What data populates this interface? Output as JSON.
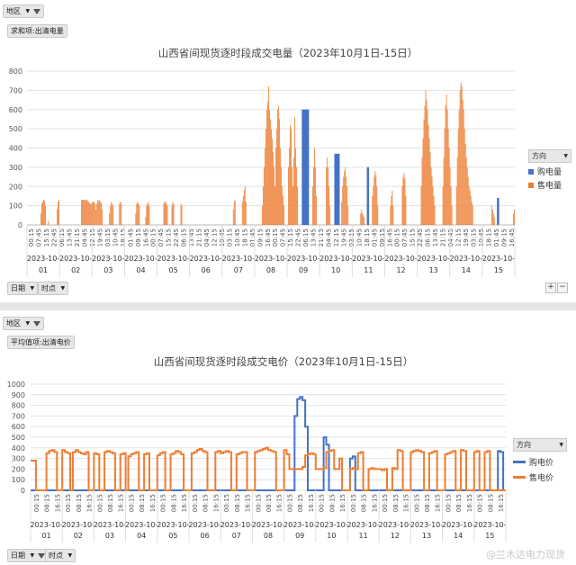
{
  "panel1": {
    "filter_label": "地区",
    "field_label": "求和项:出清电量",
    "row_fields": [
      "日期",
      "时点"
    ],
    "legend_title": "方向",
    "chart_data": {
      "type": "bar",
      "title": "山西省间现货逐时段成交电量（2023年10月1日-15日）",
      "xlabel": "",
      "ylabel": "",
      "ylim": [
        0,
        800
      ],
      "yticks": [
        0,
        100,
        200,
        300,
        400,
        500,
        600,
        700,
        800
      ],
      "grid": true,
      "legend_position": "right",
      "x_time_labels": [
        "00:15",
        "07:45",
        "15:15",
        "22:45",
        "06:15",
        "13:45",
        "21:15",
        "04:45",
        "12:15",
        "19:45",
        "03:15",
        "10:45",
        "18:15",
        "01:45",
        "09:15",
        "16:45",
        "00:15",
        "07:45",
        "15:15",
        "22:45",
        "06:15",
        "13:45",
        "21:15",
        "04:45",
        "12:15",
        "19:45",
        "03:15",
        "10:45",
        "18:15",
        "01:45",
        "09:15",
        "16:45",
        "00:15",
        "07:45",
        "15:15",
        "22:45",
        "06:15",
        "13:45",
        "21:15",
        "04:45",
        "12:15",
        "19:45",
        "03:15",
        "10:45",
        "18:15",
        "01:45",
        "09:15",
        "16:45",
        "00:15",
        "07:45",
        "15:15",
        "22:45",
        "06:15",
        "13:45",
        "21:15",
        "04:45",
        "12:15",
        "19:45",
        "03:15",
        "10:45",
        "18:15",
        "01:45",
        "09:15",
        "16:45"
      ],
      "date_group_label": "2023-10-",
      "categories": [
        "01",
        "02",
        "03",
        "04",
        "05",
        "06",
        "07",
        "08",
        "09",
        "10",
        "11",
        "12",
        "13",
        "14",
        "15"
      ],
      "series": [
        {
          "name": "购电量",
          "color": "#4472C4",
          "values": [
            0,
            0,
            0,
            0,
            0,
            0,
            0,
            0,
            600,
            370,
            300,
            0,
            0,
            0,
            140
          ]
        },
        {
          "name": "售电量",
          "color": "#ED7D31",
          "values": [
            130,
            130,
            130,
            120,
            120,
            120,
            200,
            730,
            560,
            300,
            280,
            270,
            720,
            740,
            100
          ]
        }
      ],
      "daily_profile": {
        "01": [
          0,
          0,
          0,
          0,
          0,
          0,
          0,
          0,
          0,
          0,
          0,
          0,
          0,
          0,
          0,
          60,
          110,
          120,
          130,
          125,
          100,
          0,
          0,
          20,
          0,
          0,
          0,
          0,
          0,
          0,
          0,
          0,
          0,
          80,
          120,
          130
        ],
        "02": [
          0,
          0,
          0,
          0,
          0,
          0,
          0,
          0,
          0,
          0,
          0,
          0,
          0,
          0,
          0,
          0,
          0,
          0,
          0,
          0,
          0,
          0,
          0,
          0,
          130,
          130,
          130,
          130,
          130,
          130,
          130,
          125,
          120,
          115,
          110,
          110
        ],
        "03": [
          120,
          120,
          120,
          110,
          80,
          110,
          130,
          125,
          130,
          120,
          115,
          80,
          0,
          0,
          0,
          0,
          0,
          0,
          0,
          60,
          100,
          120,
          110,
          100,
          0,
          0,
          0,
          0,
          0,
          0,
          110,
          120,
          115,
          0,
          0,
          0
        ],
        "04": [
          0,
          0,
          0,
          0,
          0,
          0,
          0,
          0,
          0,
          0,
          0,
          0,
          60,
          110,
          120,
          110,
          100,
          0,
          0,
          0,
          0,
          0,
          0,
          40,
          100,
          110,
          120,
          100,
          0,
          0,
          0,
          0,
          0,
          0,
          0,
          0
        ],
        "05": [
          0,
          0,
          0,
          0,
          0,
          0,
          0,
          110,
          120,
          120,
          110,
          100,
          0,
          0,
          0,
          0,
          100,
          120,
          110,
          0,
          0,
          0,
          0,
          0,
          0,
          0,
          110,
          100,
          0,
          0,
          0,
          0,
          0,
          0,
          0,
          0
        ],
        "06": [
          0,
          0,
          0,
          0,
          0,
          0,
          0,
          0,
          0,
          0,
          0,
          0,
          0,
          0,
          0,
          0,
          0,
          0,
          0,
          0,
          0,
          0,
          0,
          0,
          0,
          0,
          0,
          0,
          0,
          0,
          0,
          0,
          0,
          0,
          0,
          0
        ],
        "07": [
          0,
          0,
          0,
          0,
          0,
          0,
          0,
          0,
          0,
          0,
          0,
          0,
          80,
          120,
          130,
          0,
          0,
          0,
          0,
          0,
          0,
          0,
          120,
          150,
          180,
          200,
          120,
          0,
          0,
          0,
          0,
          0,
          0,
          0,
          0,
          0
        ],
        "08": [
          0,
          0,
          0,
          0,
          0,
          0,
          0,
          0,
          100,
          200,
          300,
          400,
          500,
          600,
          640,
          720,
          600,
          550,
          500,
          450,
          380,
          300,
          200,
          400,
          500,
          600,
          620,
          550,
          400,
          300,
          200,
          150,
          100,
          0,
          0,
          0
        ],
        "09": [
          0,
          300,
          400,
          520,
          500,
          300,
          200,
          350,
          560,
          400,
          300,
          200,
          0,
          0,
          0,
          0,
          0,
          0,
          0,
          0,
          0,
          0,
          0,
          0,
          0,
          0,
          0,
          0,
          200,
          300,
          400,
          300,
          150,
          0,
          0,
          0
        ],
        "10": [
          0,
          0,
          0,
          0,
          0,
          0,
          0,
          300,
          350,
          300,
          200,
          100,
          0,
          0,
          0,
          0,
          0,
          0,
          0,
          0,
          0,
          0,
          0,
          0,
          120,
          200,
          250,
          280,
          300,
          250,
          200,
          100,
          0,
          0,
          0,
          0
        ],
        "11": [
          0,
          0,
          0,
          0,
          0,
          0,
          0,
          0,
          0,
          60,
          80,
          60,
          50,
          40,
          0,
          0,
          0,
          0,
          0,
          0,
          0,
          0,
          150,
          200,
          250,
          280,
          260,
          200,
          100,
          0,
          0,
          0,
          0,
          0,
          0,
          0
        ],
        "12": [
          0,
          0,
          0,
          0,
          0,
          0,
          100,
          150,
          180,
          100,
          0,
          0,
          0,
          0,
          0,
          0,
          0,
          0,
          0,
          200,
          250,
          270,
          240,
          150,
          0,
          0,
          0,
          0,
          0,
          0,
          0,
          0,
          0,
          0,
          0,
          0
        ],
        "13": [
          0,
          0,
          0,
          0,
          200,
          350,
          450,
          550,
          620,
          700,
          650,
          600,
          520,
          450,
          380,
          300,
          250,
          200,
          150,
          100,
          0,
          0,
          0,
          0,
          0,
          0,
          0,
          0,
          200,
          350,
          500,
          620,
          680,
          600,
          500,
          400
        ],
        "14": [
          300,
          200,
          100,
          0,
          0,
          0,
          0,
          200,
          350,
          500,
          600,
          700,
          740,
          720,
          650,
          600,
          500,
          420,
          350,
          300,
          250,
          200,
          180,
          150,
          120,
          100,
          0,
          0,
          0,
          0,
          0,
          0,
          0,
          0,
          0,
          0
        ],
        "15": [
          0,
          0,
          0,
          0,
          0,
          0,
          0,
          0,
          0,
          0,
          100,
          80,
          60,
          40,
          0,
          0,
          0,
          0,
          0,
          0,
          0,
          0,
          0,
          0,
          0,
          0,
          0,
          0,
          0,
          0,
          0,
          0,
          0,
          0,
          60,
          80
        ]
      }
    }
  },
  "panel2": {
    "filter_label": "地区",
    "field_label": "平均值项:出清电价",
    "row_fields": [
      "日期",
      "时点"
    ],
    "legend_title": "方向",
    "chart_data": {
      "type": "line",
      "title": "山西省间现货逐时段成交电价（2023年10月1日-15日）",
      "xlabel": "",
      "ylabel": "",
      "ylim": [
        0,
        1000
      ],
      "yticks": [
        0,
        100,
        200,
        300,
        400,
        500,
        600,
        700,
        800,
        900,
        1000
      ],
      "grid": true,
      "legend_position": "right",
      "x_time_labels": [
        "00:15",
        "08:15",
        "16:15",
        "00:15",
        "08:15",
        "16:15",
        "00:15",
        "08:15",
        "16:15",
        "00:15",
        "08:15",
        "16:15",
        "00:15",
        "08:15",
        "16:15",
        "00:15",
        "08:15",
        "16:15",
        "00:15",
        "08:15",
        "16:15",
        "00:15",
        "08:15",
        "16:15",
        "00:15",
        "08:15",
        "16:15",
        "00:15",
        "08:15",
        "16:15",
        "00:15",
        "08:15",
        "16:15",
        "00:15",
        "08:15",
        "16:15",
        "00:15",
        "08:15",
        "16:15",
        "00:15",
        "08:15",
        "16:15",
        "00:15",
        "08:15",
        "16:15"
      ],
      "date_group_label": "2023-10-",
      "categories": [
        "01",
        "02",
        "03",
        "04",
        "05",
        "06",
        "07",
        "08",
        "09",
        "10",
        "11",
        "12",
        "13",
        "14",
        "15"
      ],
      "series": [
        {
          "name": "购电价",
          "color": "#4472C4",
          "values": [
            0,
            0,
            0,
            0,
            0,
            0,
            0,
            0,
            880,
            500,
            320,
            0,
            0,
            0,
            370
          ]
        },
        {
          "name": "售电价",
          "color": "#ED7D31",
          "values": [
            380,
            380,
            370,
            350,
            370,
            360,
            380,
            390,
            380,
            360,
            280,
            260,
            370,
            360,
            350
          ]
        }
      ],
      "daily_profile_sell": {
        "01": [
          280,
          280,
          0,
          0,
          0,
          0,
          350,
          370,
          380,
          360,
          0,
          0
        ],
        "02": [
          380,
          360,
          350,
          0,
          360,
          380,
          360,
          350,
          340,
          360,
          0,
          0
        ],
        "03": [
          350,
          340,
          0,
          0,
          360,
          370,
          360,
          350,
          0,
          0,
          340,
          350
        ],
        "04": [
          0,
          320,
          340,
          350,
          360,
          0,
          0,
          340,
          350,
          0,
          0,
          0
        ],
        "05": [
          330,
          350,
          360,
          0,
          0,
          340,
          350,
          370,
          360,
          340,
          0,
          0
        ],
        "06": [
          0,
          350,
          360,
          380,
          390,
          370,
          360,
          0,
          0,
          0,
          360,
          370
        ],
        "07": [
          350,
          360,
          370,
          360,
          0,
          0,
          340,
          350,
          360,
          360,
          0,
          0
        ],
        "08": [
          0,
          360,
          370,
          380,
          390,
          400,
          380,
          370,
          360,
          0,
          0,
          0
        ],
        "09": [
          380,
          340,
          200,
          200,
          200,
          200,
          200,
          220,
          330,
          340,
          350,
          340
        ],
        "10": [
          200,
          200,
          200,
          210,
          360,
          370,
          380,
          200,
          200,
          300,
          0,
          0
        ],
        "11": [
          0,
          200,
          210,
          200,
          350,
          360,
          0,
          0,
          200,
          210,
          200,
          200
        ],
        "12": [
          200,
          190,
          200,
          0,
          0,
          210,
          200,
          380,
          370,
          0,
          0,
          0
        ],
        "13": [
          360,
          370,
          380,
          370,
          360,
          0,
          0,
          350,
          360,
          370,
          0,
          0
        ],
        "14": [
          0,
          340,
          350,
          360,
          370,
          0,
          0,
          380,
          370,
          0,
          0,
          0
        ],
        "15": [
          360,
          370,
          0,
          0,
          360,
          370,
          0,
          0,
          0,
          0,
          0,
          0
        ]
      },
      "daily_profile_buy": {
        "01": [
          0,
          0,
          0,
          0,
          0,
          0,
          0,
          0,
          0,
          0,
          0,
          0
        ],
        "02": [
          0,
          0,
          0,
          0,
          0,
          0,
          0,
          0,
          0,
          0,
          0,
          0
        ],
        "03": [
          0,
          0,
          0,
          0,
          0,
          0,
          0,
          0,
          0,
          0,
          0,
          0
        ],
        "04": [
          0,
          0,
          0,
          0,
          0,
          0,
          0,
          0,
          0,
          0,
          0,
          0
        ],
        "05": [
          0,
          0,
          0,
          0,
          0,
          0,
          0,
          0,
          0,
          0,
          0,
          0
        ],
        "06": [
          0,
          0,
          0,
          0,
          0,
          0,
          0,
          0,
          0,
          0,
          0,
          0
        ],
        "07": [
          0,
          0,
          0,
          0,
          0,
          0,
          0,
          0,
          0,
          0,
          0,
          0
        ],
        "08": [
          0,
          0,
          0,
          0,
          0,
          0,
          0,
          0,
          0,
          0,
          0,
          0
        ],
        "09": [
          0,
          0,
          0,
          0,
          700,
          860,
          880,
          850,
          600,
          0,
          0,
          0
        ],
        "10": [
          0,
          0,
          0,
          500,
          430,
          0,
          0,
          0,
          0,
          0,
          0,
          0
        ],
        "11": [
          0,
          300,
          320,
          0,
          0,
          0,
          0,
          0,
          0,
          0,
          0,
          0
        ],
        "12": [
          0,
          0,
          0,
          0,
          0,
          0,
          0,
          0,
          0,
          0,
          0,
          0
        ],
        "13": [
          0,
          0,
          0,
          0,
          0,
          0,
          0,
          0,
          0,
          0,
          0,
          0
        ],
        "14": [
          0,
          0,
          0,
          0,
          0,
          0,
          0,
          0,
          0,
          0,
          0,
          0
        ],
        "15": [
          0,
          0,
          0,
          0,
          0,
          0,
          0,
          0,
          0,
          370,
          360,
          0
        ]
      }
    }
  },
  "watermark": "@兰木达电力现货"
}
